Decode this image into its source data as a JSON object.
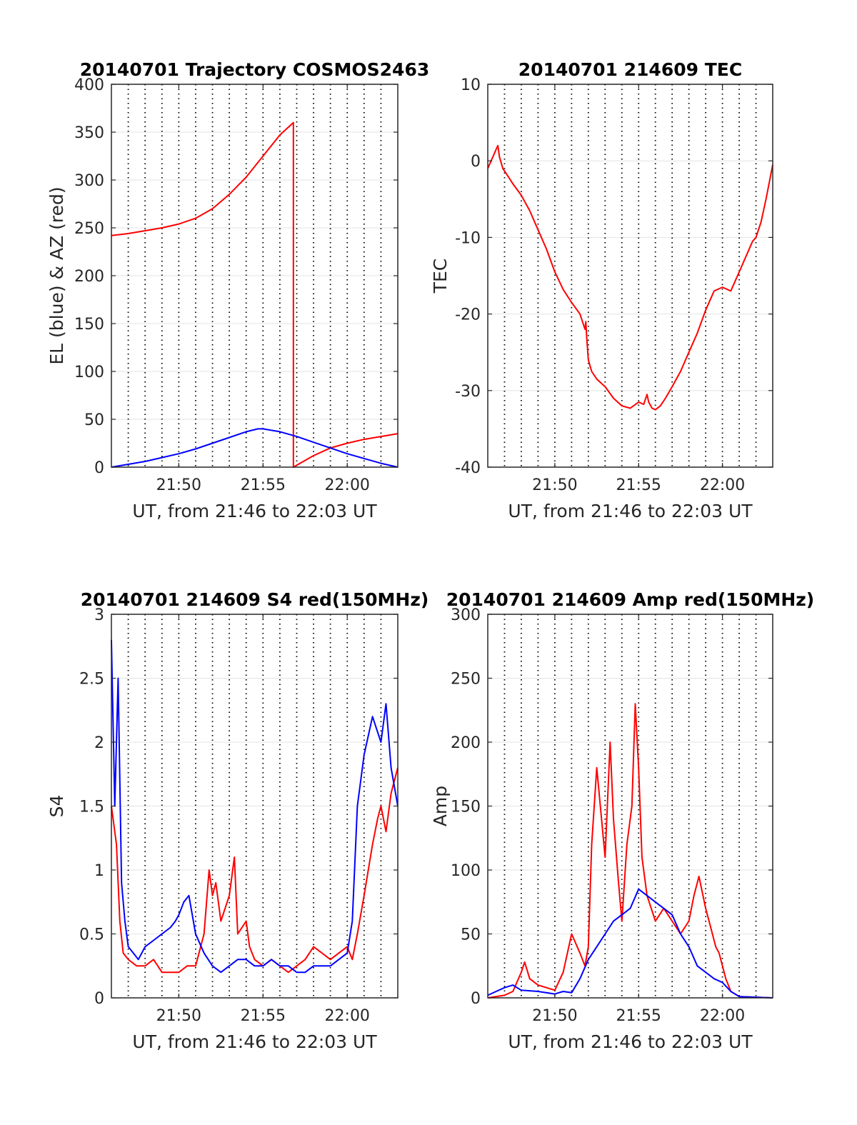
{
  "chart_data": [
    {
      "type": "line",
      "title": "20140701 Trajectory COSMOS2463",
      "xlabel": "UT, from 21:46 to 22:03 UT",
      "ylabel": "EL (blue) & AZ (red)",
      "xlim": [
        0,
        17
      ],
      "ylim": [
        0,
        400
      ],
      "xticks": [
        4,
        9,
        14
      ],
      "xticklabels": [
        "21:50",
        "21:55",
        "22:00"
      ],
      "yticks": [
        0,
        50,
        100,
        150,
        200,
        250,
        300,
        350,
        400
      ],
      "yticklabels": [
        "0",
        "50",
        "100",
        "150",
        "200",
        "250",
        "300",
        "350",
        "400"
      ],
      "grid": true,
      "vertical_dotted_lines_every_min": 1,
      "series": [
        {
          "color": "#ff0000",
          "x": [
            0,
            1,
            2,
            3,
            4,
            5,
            6,
            7,
            8,
            9,
            10,
            10.8,
            10.8,
            10.81,
            11,
            12,
            13,
            14,
            15,
            16,
            17
          ],
          "values": [
            242,
            244,
            247,
            250,
            254,
            260,
            270,
            285,
            303,
            325,
            347,
            360,
            0,
            0,
            2,
            12,
            20,
            25,
            29,
            32,
            35
          ]
        },
        {
          "color": "#0000ff",
          "x": [
            0,
            1,
            2,
            3,
            4,
            5,
            6,
            7,
            8,
            8.7,
            9,
            10,
            11,
            12,
            13,
            14,
            15,
            16,
            17
          ],
          "values": [
            0,
            3,
            6,
            10,
            14,
            19,
            25,
            31,
            37,
            40,
            40,
            37,
            32,
            26,
            20,
            14,
            9,
            4,
            0
          ]
        }
      ]
    },
    {
      "type": "line",
      "title": "20140701 214609 TEC",
      "xlabel": "UT, from 21:46 to 22:03 UT",
      "ylabel": "TEC",
      "xlim": [
        0,
        17
      ],
      "ylim": [
        -40,
        10
      ],
      "xticks": [
        4,
        9,
        14
      ],
      "xticklabels": [
        "21:50",
        "21:55",
        "22:00"
      ],
      "yticks": [
        -40,
        -30,
        -20,
        -10,
        0,
        10
      ],
      "yticklabels": [
        "-40",
        "-30",
        "-20",
        "-10",
        "0",
        "10"
      ],
      "grid": true,
      "vertical_dotted_lines_every_min": 1,
      "series": [
        {
          "color": "#ff0000",
          "x": [
            0,
            0.2,
            0.5,
            0.6,
            0.7,
            0.9,
            1.2,
            1.5,
            2,
            2.5,
            3,
            3.5,
            4,
            4.5,
            5,
            5.5,
            5.8,
            5.85,
            5.9,
            6,
            6.2,
            6.5,
            7,
            7.5,
            8,
            8.5,
            9,
            9.3,
            9.5,
            9.6,
            9.8,
            10,
            10.3,
            10.6,
            11,
            11.5,
            12,
            12.5,
            13,
            13.5,
            14,
            14.5,
            14.7,
            15,
            15.5,
            15.8,
            16,
            16.3,
            16.6,
            17
          ],
          "values": [
            -1,
            0,
            1.5,
            2,
            0.5,
            -1,
            -2,
            -3,
            -4.5,
            -6.5,
            -9,
            -11.5,
            -14.5,
            -16.8,
            -18.5,
            -20,
            -22,
            -21,
            -23,
            -26,
            -27.5,
            -28.5,
            -29.5,
            -31,
            -32,
            -32.3,
            -31.5,
            -31.8,
            -30.5,
            -31.5,
            -32.3,
            -32.5,
            -32,
            -31,
            -29.5,
            -27.5,
            -25,
            -22.5,
            -19.5,
            -17,
            -16.5,
            -17,
            -16,
            -14.5,
            -12,
            -10.5,
            -10,
            -8,
            -5,
            -0.5
          ]
        }
      ]
    },
    {
      "type": "line",
      "title": "20140701 214609 S4 red(150MHz)",
      "xlabel": "UT, from 21:46 to 22:03 UT",
      "ylabel": "S4",
      "xlim": [
        0,
        17
      ],
      "ylim": [
        0,
        3
      ],
      "xticks": [
        4,
        9,
        14
      ],
      "xticklabels": [
        "21:50",
        "21:55",
        "22:00"
      ],
      "yticks": [
        0,
        0.5,
        1,
        1.5,
        2,
        2.5,
        3
      ],
      "yticklabels": [
        "0",
        "0.5",
        "1",
        "1.5",
        "2",
        "2.5",
        "3"
      ],
      "grid": true,
      "vertical_dotted_lines_every_min": 1,
      "series": [
        {
          "color": "#ff0000",
          "x": [
            0,
            0.3,
            0.5,
            0.7,
            1,
            1.5,
            2,
            2.5,
            3,
            3.5,
            4,
            4.5,
            5,
            5.5,
            5.8,
            6,
            6.2,
            6.5,
            7,
            7.3,
            7.5,
            8,
            8.2,
            8.5,
            9,
            9.5,
            10,
            10.5,
            11,
            11.5,
            12,
            12.5,
            13,
            13.5,
            14,
            14.3,
            14.6,
            15,
            15.5,
            15.8,
            16,
            16.3,
            16.6,
            17
          ],
          "values": [
            1.5,
            1.2,
            0.6,
            0.35,
            0.3,
            0.25,
            0.25,
            0.3,
            0.2,
            0.2,
            0.2,
            0.25,
            0.25,
            0.5,
            1.0,
            0.8,
            0.9,
            0.6,
            0.8,
            1.1,
            0.5,
            0.6,
            0.4,
            0.3,
            0.25,
            0.3,
            0.25,
            0.2,
            0.25,
            0.3,
            0.4,
            0.35,
            0.3,
            0.35,
            0.4,
            0.3,
            0.5,
            0.8,
            1.2,
            1.4,
            1.5,
            1.3,
            1.6,
            1.8
          ]
        },
        {
          "color": "#0000ff",
          "x": [
            0,
            0.2,
            0.4,
            0.6,
            0.8,
            1,
            1.3,
            1.6,
            2,
            2.5,
            3,
            3.5,
            3.8,
            4,
            4.3,
            4.6,
            5,
            5.5,
            6,
            6.5,
            7,
            7.5,
            8,
            8.5,
            9,
            9.5,
            10,
            10.5,
            11,
            11.5,
            12,
            12.5,
            13,
            13.5,
            14,
            14.3,
            14.6,
            15,
            15.5,
            16,
            16.3,
            16.6,
            17
          ],
          "values": [
            2.8,
            1.5,
            2.5,
            0.9,
            0.6,
            0.4,
            0.35,
            0.3,
            0.4,
            0.45,
            0.5,
            0.55,
            0.6,
            0.65,
            0.75,
            0.8,
            0.5,
            0.35,
            0.25,
            0.2,
            0.25,
            0.3,
            0.3,
            0.25,
            0.25,
            0.3,
            0.25,
            0.25,
            0.2,
            0.2,
            0.25,
            0.25,
            0.25,
            0.3,
            0.35,
            0.6,
            1.5,
            1.9,
            2.2,
            2.0,
            2.3,
            1.8,
            1.5
          ]
        }
      ]
    },
    {
      "type": "line",
      "title": "20140701 214609 Amp red(150MHz)",
      "xlabel": "UT, from 21:46 to 22:03 UT",
      "ylabel": "Amp",
      "xlim": [
        0,
        17
      ],
      "ylim": [
        0,
        300
      ],
      "xticks": [
        4,
        9,
        14
      ],
      "xticklabels": [
        "21:50",
        "21:55",
        "22:00"
      ],
      "yticks": [
        0,
        50,
        100,
        150,
        200,
        250,
        300
      ],
      "yticklabels": [
        "0",
        "50",
        "100",
        "150",
        "200",
        "250",
        "300"
      ],
      "grid": true,
      "vertical_dotted_lines_every_min": 1,
      "series": [
        {
          "color": "#ff0000",
          "x": [
            0,
            1,
            1.5,
            2,
            2.2,
            2.5,
            3,
            3.5,
            4,
            4.5,
            5,
            5.5,
            5.8,
            6,
            6.2,
            6.5,
            7,
            7.3,
            7.5,
            7.8,
            8,
            8.3,
            8.6,
            8.8,
            9,
            9.2,
            9.5,
            10,
            10.5,
            11,
            11.5,
            12,
            12.3,
            12.6,
            13,
            13.3,
            13.6,
            13.8,
            14,
            14.2,
            14.5,
            15,
            17
          ],
          "values": [
            0,
            2,
            5,
            20,
            28,
            15,
            10,
            8,
            6,
            20,
            50,
            35,
            25,
            40,
            120,
            180,
            110,
            200,
            140,
            90,
            60,
            120,
            150,
            230,
            180,
            110,
            80,
            60,
            70,
            60,
            50,
            60,
            80,
            95,
            70,
            55,
            40,
            35,
            25,
            15,
            5,
            1,
            0
          ]
        },
        {
          "color": "#0000ff",
          "x": [
            0,
            0.5,
            1,
            1.5,
            2,
            3,
            4,
            4.5,
            5,
            5.5,
            6,
            6.5,
            7,
            7.5,
            8,
            8.5,
            9,
            9.5,
            10,
            10.5,
            11,
            11.5,
            12,
            12.5,
            13,
            13.5,
            14,
            14.5,
            15,
            17
          ],
          "values": [
            2,
            5,
            8,
            10,
            6,
            5,
            3,
            5,
            4,
            15,
            30,
            40,
            50,
            60,
            65,
            70,
            85,
            80,
            75,
            70,
            65,
            50,
            40,
            25,
            20,
            15,
            12,
            5,
            1,
            0
          ]
        }
      ]
    }
  ]
}
